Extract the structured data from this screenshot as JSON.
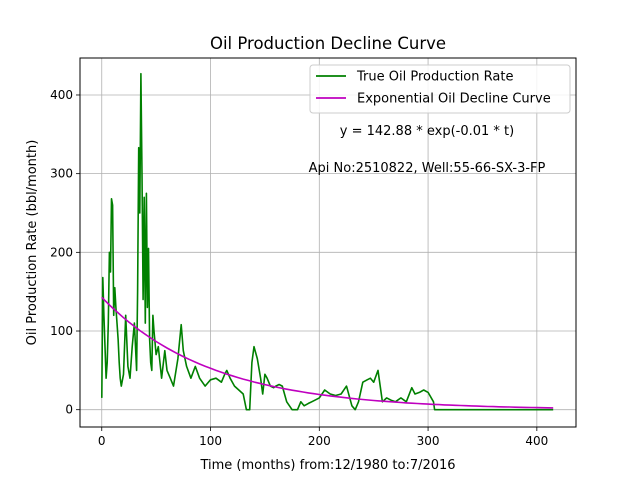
{
  "chart_data": {
    "type": "line",
    "title": "Oil Production Decline Curve",
    "xlabel": "Time (months) from:12/1980 to:7/2016",
    "ylabel": "Oil Production Rate (bbl/month)",
    "xlim": [
      -20,
      436
    ],
    "ylim": [
      -22,
      447
    ],
    "xticks": [
      0,
      100,
      200,
      300,
      400
    ],
    "yticks": [
      0,
      100,
      200,
      300,
      400
    ],
    "grid": true,
    "legend_position": "top-right",
    "annotations": [
      {
        "text": "y = 142.88 * exp(-0.01 * t)",
        "x": 300,
        "y": 350
      },
      {
        "text": "Api No:2510822, Well:55-66-SX-3-FP",
        "x": 300,
        "y": 300
      }
    ],
    "series": [
      {
        "name": "True Oil Production Rate",
        "color": "#008000",
        "x": [
          0,
          1,
          2,
          3,
          4,
          5,
          6,
          7,
          8,
          9,
          10,
          11,
          12,
          13,
          14,
          15,
          16,
          17,
          18,
          20,
          22,
          24,
          26,
          28,
          30,
          32,
          33,
          34,
          35,
          36,
          37,
          38,
          39,
          40,
          41,
          42,
          43,
          44,
          45,
          46,
          47,
          48,
          50,
          52,
          55,
          58,
          60,
          63,
          66,
          70,
          73,
          75,
          78,
          82,
          86,
          90,
          95,
          100,
          105,
          110,
          113,
          115,
          118,
          122,
          126,
          130,
          133,
          136,
          138,
          140,
          143,
          146,
          148,
          150,
          152,
          155,
          158,
          160,
          163,
          166,
          170,
          175,
          180,
          183,
          186,
          190,
          193,
          196,
          200,
          205,
          210,
          215,
          220,
          225,
          230,
          233,
          236,
          240,
          244,
          247,
          250,
          254,
          258,
          262,
          266,
          270,
          275,
          280,
          285,
          288,
          292,
          296,
          300,
          305,
          306,
          310,
          320,
          340,
          360,
          380,
          400,
          415
        ],
        "y": [
          15,
          168,
          120,
          80,
          40,
          60,
          110,
          200,
          175,
          268,
          260,
          120,
          155,
          130,
          110,
          90,
          60,
          40,
          30,
          45,
          120,
          55,
          40,
          80,
          110,
          50,
          150,
          333,
          250,
          427,
          300,
          140,
          270,
          110,
          275,
          130,
          205,
          90,
          60,
          50,
          120,
          100,
          70,
          80,
          40,
          75,
          50,
          40,
          30,
          65,
          108,
          75,
          55,
          40,
          55,
          40,
          30,
          38,
          40,
          35,
          45,
          50,
          40,
          30,
          25,
          20,
          0,
          0,
          60,
          80,
          65,
          40,
          20,
          45,
          40,
          30,
          28,
          30,
          32,
          30,
          10,
          0,
          0,
          10,
          5,
          8,
          10,
          12,
          15,
          25,
          20,
          18,
          20,
          30,
          5,
          0,
          10,
          35,
          38,
          40,
          35,
          50,
          10,
          15,
          12,
          10,
          15,
          10,
          28,
          20,
          22,
          25,
          22,
          10,
          0,
          0,
          0,
          0,
          0,
          0,
          0,
          0
        ]
      },
      {
        "name": "Exponential Oil Decline Curve",
        "color": "#bf00bf",
        "function": {
          "a": 142.88,
          "b": 0.01,
          "x_start": 0,
          "x_end": 415
        }
      }
    ]
  }
}
